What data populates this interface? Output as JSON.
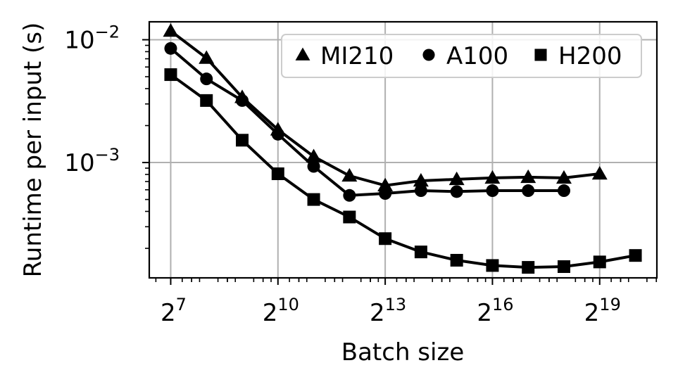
{
  "chart_data": {
    "type": "line",
    "title": "",
    "xlabel": "Batch size",
    "ylabel": "Runtime per input (s)",
    "xscale": "log2",
    "yscale": "log10",
    "xlim_exp2": [
      6.4,
      20.6
    ],
    "ylim": [
      0.000115,
      0.014
    ],
    "grid": true,
    "legend_position": "top-right",
    "x_ticks": [
      {
        "exp": 7,
        "base": "2",
        "sup": "7"
      },
      {
        "exp": 10,
        "base": "2",
        "sup": "10"
      },
      {
        "exp": 13,
        "base": "2",
        "sup": "13"
      },
      {
        "exp": 16,
        "base": "2",
        "sup": "16"
      },
      {
        "exp": 19,
        "base": "2",
        "sup": "19"
      }
    ],
    "y_ticks": [
      {
        "value": 0.01,
        "base": "10",
        "sup": "−2"
      },
      {
        "value": 0.001,
        "base": "10",
        "sup": "−3"
      }
    ],
    "series": [
      {
        "name": "MI210",
        "marker": "triangle",
        "x_exp2": [
          7,
          8,
          9,
          10,
          11,
          12,
          13,
          14,
          15,
          16,
          17,
          18,
          19
        ],
        "values": [
          0.0118,
          0.0071,
          0.0034,
          0.00185,
          0.00112,
          0.00078,
          0.00065,
          0.00071,
          0.00073,
          0.00075,
          0.00076,
          0.00075,
          0.00081
        ]
      },
      {
        "name": "A100",
        "marker": "circle",
        "x_exp2": [
          7,
          8,
          9,
          10,
          11,
          12,
          13,
          14,
          15,
          16,
          17,
          18
        ],
        "values": [
          0.0085,
          0.0048,
          0.0032,
          0.0017,
          0.00093,
          0.00054,
          0.00056,
          0.00059,
          0.00058,
          0.00059,
          0.00059,
          0.00059
        ]
      },
      {
        "name": "H200",
        "marker": "square",
        "x_exp2": [
          7,
          8,
          9,
          10,
          11,
          12,
          13,
          14,
          15,
          16,
          17,
          18,
          19,
          20
        ],
        "values": [
          0.0052,
          0.0032,
          0.00152,
          0.00081,
          0.0005,
          0.00036,
          0.00024,
          0.000187,
          0.00016,
          0.000145,
          0.00014,
          0.000142,
          0.000155,
          0.000175
        ]
      }
    ],
    "colors": {
      "line": "#000000",
      "grid": "#b0b0b0",
      "legend_border": "#cccccc",
      "background": "#ffffff"
    }
  }
}
